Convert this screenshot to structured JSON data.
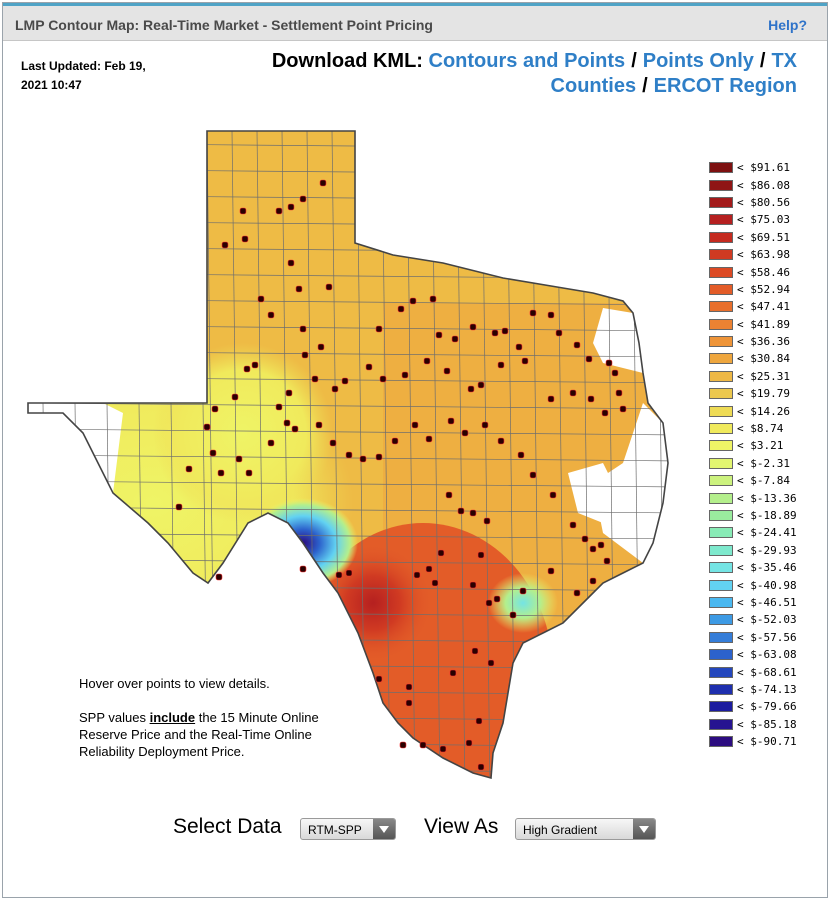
{
  "header": {
    "title": "LMP Contour Map: Real-Time Market - Settlement Point Pricing",
    "help": "Help?"
  },
  "updated": {
    "line1": "Last Updated: Feb 19,",
    "line2": "2021 10:47"
  },
  "kml": {
    "label": "Download KML:",
    "links": [
      "Contours and Points",
      "Points Only",
      "TX Counties",
      "ERCOT Region"
    ]
  },
  "legend": [
    {
      "label": "< $91.61",
      "color": "#7d1010"
    },
    {
      "label": "< $86.08",
      "color": "#8f1515"
    },
    {
      "label": "< $80.56",
      "color": "#a31a1a"
    },
    {
      "label": "< $75.03",
      "color": "#b52020"
    },
    {
      "label": "< $69.51",
      "color": "#c42a1f"
    },
    {
      "label": "< $63.98",
      "color": "#d03a22"
    },
    {
      "label": "< $58.46",
      "color": "#dc4a24"
    },
    {
      "label": "< $52.94",
      "color": "#e35c28"
    },
    {
      "label": "< $47.41",
      "color": "#e86f2c"
    },
    {
      "label": "< $41.89",
      "color": "#ec8232"
    },
    {
      "label": "< $36.36",
      "color": "#ee9438"
    },
    {
      "label": "< $30.84",
      "color": "#eea63e"
    },
    {
      "label": "< $25.31",
      "color": "#eeb845"
    },
    {
      "label": "< $19.79",
      "color": "#ecc84e"
    },
    {
      "label": "< $14.26",
      "color": "#eedb55"
    },
    {
      "label": "< $8.74",
      "color": "#f0ea5c"
    },
    {
      "label": "< $3.21",
      "color": "#eff466"
    },
    {
      "label": "< $-2.31",
      "color": "#e2f570"
    },
    {
      "label": "< $-7.84",
      "color": "#ccf27e"
    },
    {
      "label": "< $-13.36",
      "color": "#b4ef8c"
    },
    {
      "label": "< $-18.89",
      "color": "#9aec9e"
    },
    {
      "label": "< $-24.41",
      "color": "#88ebb6"
    },
    {
      "label": "< $-29.93",
      "color": "#7ee9cd"
    },
    {
      "label": "< $-35.46",
      "color": "#74e4e4"
    },
    {
      "label": "< $-40.98",
      "color": "#62d2f2"
    },
    {
      "label": "< $-46.51",
      "color": "#4ab8f0"
    },
    {
      "label": "< $-52.03",
      "color": "#3d9ae4"
    },
    {
      "label": "< $-57.56",
      "color": "#357dd8"
    },
    {
      "label": "< $-63.08",
      "color": "#2c62cc"
    },
    {
      "label": "< $-68.61",
      "color": "#2447bd"
    },
    {
      "label": "< $-74.13",
      "color": "#1e2fae"
    },
    {
      "label": "< $-79.66",
      "color": "#1c1c9f"
    },
    {
      "label": "< $-85.18",
      "color": "#261391"
    },
    {
      "label": "< $-90.71",
      "color": "#2c0c80"
    }
  ],
  "notes": {
    "hover": "Hover over points to view details.",
    "spp_prefix": "SPP values ",
    "spp_bold": "include",
    "spp_suffix": " the 15 Minute Online",
    "spp_line2": "Reserve Price and the Real-Time Online",
    "spp_line3": "Reliability Deployment Price."
  },
  "controls": {
    "select_data_label": "Select Data",
    "select_data_value": "RTM-SPP",
    "view_as_label": "View As",
    "view_as_value": "High Gradient"
  },
  "map": {
    "base_color": "#eebb45",
    "point_color": "#2a0000"
  }
}
